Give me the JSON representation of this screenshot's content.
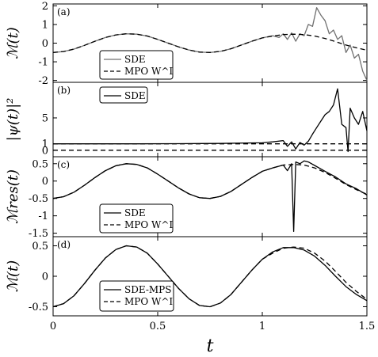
{
  "chart_data": [
    {
      "panel_label": "(a)",
      "type": "line",
      "ylabel": "ℳ(t)",
      "xlim": [
        0,
        1.5
      ],
      "ylim": [
        -2.1,
        2.1
      ],
      "yticks": [
        {
          "v": 2,
          "t": "2"
        },
        {
          "v": 1,
          "t": "1"
        },
        {
          "v": 0,
          "t": "0"
        },
        {
          "v": -1,
          "t": "-1"
        },
        {
          "v": -2,
          "t": "-2"
        }
      ],
      "legend_position": "bottom-center",
      "series": [
        {
          "name": "SDE",
          "color": "#707070",
          "dash": "",
          "width": 1.3,
          "x": [
            0,
            0.05,
            0.1,
            0.15,
            0.2,
            0.25,
            0.3,
            0.35,
            0.4,
            0.45,
            0.5,
            0.55,
            0.6,
            0.65,
            0.7,
            0.75,
            0.8,
            0.85,
            0.9,
            0.95,
            1.0,
            1.05,
            1.08,
            1.1,
            1.12,
            1.14,
            1.16,
            1.18,
            1.2,
            1.22,
            1.24,
            1.26,
            1.28,
            1.3,
            1.32,
            1.34,
            1.36,
            1.38,
            1.4,
            1.42,
            1.44,
            1.46,
            1.48,
            1.5
          ],
          "y": [
            -0.5,
            -0.45,
            -0.32,
            -0.12,
            0.1,
            0.3,
            0.44,
            0.5,
            0.48,
            0.38,
            0.2,
            0.0,
            -0.2,
            -0.37,
            -0.48,
            -0.5,
            -0.44,
            -0.3,
            -0.1,
            0.1,
            0.28,
            0.4,
            0.3,
            0.5,
            0.2,
            0.55,
            0.1,
            0.5,
            0.4,
            1.0,
            0.9,
            1.9,
            1.5,
            1.2,
            0.5,
            0.7,
            0.2,
            0.4,
            -0.5,
            -0.1,
            -0.8,
            -0.6,
            -1.5,
            -2.0
          ]
        },
        {
          "name": "MPO W^I",
          "color": "#000000",
          "dash": "6,4",
          "width": 1.3,
          "x": [
            0,
            0.05,
            0.1,
            0.15,
            0.2,
            0.25,
            0.3,
            0.35,
            0.4,
            0.45,
            0.5,
            0.55,
            0.6,
            0.65,
            0.7,
            0.75,
            0.8,
            0.85,
            0.9,
            0.95,
            1.0,
            1.05,
            1.1,
            1.15,
            1.2,
            1.25,
            1.3,
            1.35,
            1.4,
            1.45,
            1.5
          ],
          "y": [
            -0.5,
            -0.45,
            -0.32,
            -0.12,
            0.1,
            0.3,
            0.44,
            0.5,
            0.48,
            0.38,
            0.2,
            0.0,
            -0.2,
            -0.37,
            -0.48,
            -0.5,
            -0.44,
            -0.3,
            -0.1,
            0.1,
            0.28,
            0.38,
            0.46,
            0.48,
            0.46,
            0.38,
            0.25,
            0.08,
            -0.1,
            -0.25,
            -0.38
          ]
        }
      ]
    },
    {
      "panel_label": "(b)",
      "type": "line",
      "ylabel": "|ψ(t)|²",
      "xlim": [
        0,
        1.5
      ],
      "ylim": [
        -1,
        10.5
      ],
      "yticks": [
        {
          "v": 5,
          "t": "5"
        },
        {
          "v": 1,
          "t": "1"
        },
        {
          "v": 0,
          "t": "0"
        }
      ],
      "legend_position": "top-center",
      "series": [
        {
          "name": "SDE",
          "color": "#000000",
          "dash": "",
          "width": 1.3,
          "x": [
            0,
            0.2,
            0.4,
            0.6,
            0.8,
            1.0,
            1.05,
            1.1,
            1.12,
            1.14,
            1.16,
            1.18,
            1.2,
            1.22,
            1.24,
            1.26,
            1.28,
            1.3,
            1.32,
            1.34,
            1.36,
            1.38,
            1.4,
            1.41,
            1.42,
            1.44,
            1.46,
            1.48,
            1.5
          ],
          "y": [
            1.0,
            1.0,
            1.0,
            1.02,
            1.05,
            1.15,
            1.3,
            1.5,
            0.6,
            1.3,
            0.2,
            1.2,
            0.8,
            1.4,
            2.5,
            3.5,
            4.5,
            5.5,
            6.0,
            7.0,
            9.5,
            4.0,
            3.5,
            -0.2,
            6.5,
            5.0,
            4.0,
            6.0,
            3.0
          ]
        },
        {
          "name": "",
          "color": "#000000",
          "dash": "6,4",
          "width": 1.3,
          "x": [
            0,
            1.5
          ],
          "y": [
            1,
            1
          ]
        },
        {
          "name": "",
          "color": "#000000",
          "dash": "6,4",
          "width": 1.3,
          "x": [
            0,
            1.5
          ],
          "y": [
            0,
            0
          ]
        }
      ]
    },
    {
      "panel_label": "(c)",
      "type": "line",
      "ylabel": "ℳres(t)",
      "xlim": [
        0,
        1.5
      ],
      "ylim": [
        -1.6,
        0.7
      ],
      "yticks": [
        {
          "v": 0.5,
          "t": "0.5"
        },
        {
          "v": 0,
          "t": "0"
        },
        {
          "v": -0.5,
          "t": "-0.5"
        },
        {
          "v": -1,
          "t": "-1"
        },
        {
          "v": -1.5,
          "t": "-1.5"
        }
      ],
      "legend_position": "bottom-center",
      "series": [
        {
          "name": "SDE",
          "color": "#000000",
          "dash": "",
          "width": 1.3,
          "x": [
            0,
            0.05,
            0.1,
            0.15,
            0.2,
            0.25,
            0.3,
            0.35,
            0.4,
            0.45,
            0.5,
            0.55,
            0.6,
            0.65,
            0.7,
            0.75,
            0.8,
            0.85,
            0.9,
            0.95,
            1.0,
            1.05,
            1.1,
            1.12,
            1.14,
            1.15,
            1.16,
            1.18,
            1.2,
            1.22,
            1.25,
            1.3,
            1.35,
            1.4,
            1.45,
            1.5
          ],
          "y": [
            -0.5,
            -0.45,
            -0.32,
            -0.12,
            0.1,
            0.3,
            0.44,
            0.5,
            0.48,
            0.38,
            0.2,
            0.0,
            -0.2,
            -0.37,
            -0.48,
            -0.5,
            -0.44,
            -0.3,
            -0.1,
            0.1,
            0.28,
            0.38,
            0.46,
            0.3,
            0.5,
            -1.45,
            0.55,
            0.5,
            0.58,
            0.55,
            0.45,
            0.28,
            0.12,
            -0.08,
            -0.22,
            -0.4
          ]
        },
        {
          "name": "MPO W^I",
          "color": "#000000",
          "dash": "6,4",
          "width": 1.3,
          "x": [
            0,
            0.05,
            0.1,
            0.15,
            0.2,
            0.25,
            0.3,
            0.35,
            0.4,
            0.45,
            0.5,
            0.55,
            0.6,
            0.65,
            0.7,
            0.75,
            0.8,
            0.85,
            0.9,
            0.95,
            1.0,
            1.05,
            1.1,
            1.15,
            1.2,
            1.25,
            1.3,
            1.35,
            1.4,
            1.45,
            1.5
          ],
          "y": [
            -0.5,
            -0.45,
            -0.32,
            -0.12,
            0.1,
            0.3,
            0.44,
            0.5,
            0.48,
            0.38,
            0.2,
            0.0,
            -0.2,
            -0.37,
            -0.48,
            -0.5,
            -0.44,
            -0.3,
            -0.1,
            0.1,
            0.28,
            0.38,
            0.46,
            0.48,
            0.46,
            0.38,
            0.25,
            0.08,
            -0.1,
            -0.25,
            -0.38
          ]
        }
      ]
    },
    {
      "panel_label": "(d)",
      "type": "line",
      "ylabel": "ℳ(t)",
      "xlim": [
        0,
        1.5
      ],
      "ylim": [
        -0.65,
        0.65
      ],
      "yticks": [
        {
          "v": 0.5,
          "t": "0.5"
        },
        {
          "v": 0,
          "t": "0"
        },
        {
          "v": -0.5,
          "t": "-0.5"
        }
      ],
      "xticks": [
        {
          "v": 0,
          "t": "0"
        },
        {
          "v": 0.5,
          "t": "0.5"
        },
        {
          "v": 1,
          "t": "1"
        },
        {
          "v": 1.5,
          "t": "1.5"
        }
      ],
      "xlabel": "t",
      "legend_position": "bottom-center",
      "series": [
        {
          "name": "SDE-MPS",
          "color": "#000000",
          "dash": "",
          "width": 1.3,
          "x": [
            0,
            0.05,
            0.1,
            0.15,
            0.2,
            0.25,
            0.3,
            0.35,
            0.4,
            0.45,
            0.5,
            0.55,
            0.6,
            0.65,
            0.7,
            0.75,
            0.8,
            0.85,
            0.9,
            0.95,
            1.0,
            1.05,
            1.1,
            1.15,
            1.2,
            1.25,
            1.3,
            1.35,
            1.4,
            1.45,
            1.5
          ],
          "y": [
            -0.5,
            -0.45,
            -0.32,
            -0.12,
            0.1,
            0.3,
            0.44,
            0.5,
            0.48,
            0.38,
            0.2,
            0.0,
            -0.2,
            -0.37,
            -0.48,
            -0.5,
            -0.44,
            -0.3,
            -0.1,
            0.1,
            0.28,
            0.4,
            0.47,
            0.47,
            0.43,
            0.33,
            0.18,
            0.0,
            -0.17,
            -0.3,
            -0.4
          ]
        },
        {
          "name": "MPO W^I",
          "color": "#000000",
          "dash": "6,4",
          "width": 1.3,
          "x": [
            0,
            0.05,
            0.1,
            0.15,
            0.2,
            0.25,
            0.3,
            0.35,
            0.4,
            0.45,
            0.5,
            0.55,
            0.6,
            0.65,
            0.7,
            0.75,
            0.8,
            0.85,
            0.9,
            0.95,
            1.0,
            1.05,
            1.1,
            1.15,
            1.2,
            1.25,
            1.3,
            1.35,
            1.4,
            1.45,
            1.5
          ],
          "y": [
            -0.5,
            -0.45,
            -0.32,
            -0.12,
            0.1,
            0.3,
            0.44,
            0.5,
            0.48,
            0.38,
            0.2,
            0.0,
            -0.2,
            -0.37,
            -0.48,
            -0.5,
            -0.44,
            -0.3,
            -0.1,
            0.1,
            0.28,
            0.38,
            0.46,
            0.48,
            0.46,
            0.38,
            0.25,
            0.08,
            -0.1,
            -0.25,
            -0.38
          ]
        }
      ]
    }
  ]
}
